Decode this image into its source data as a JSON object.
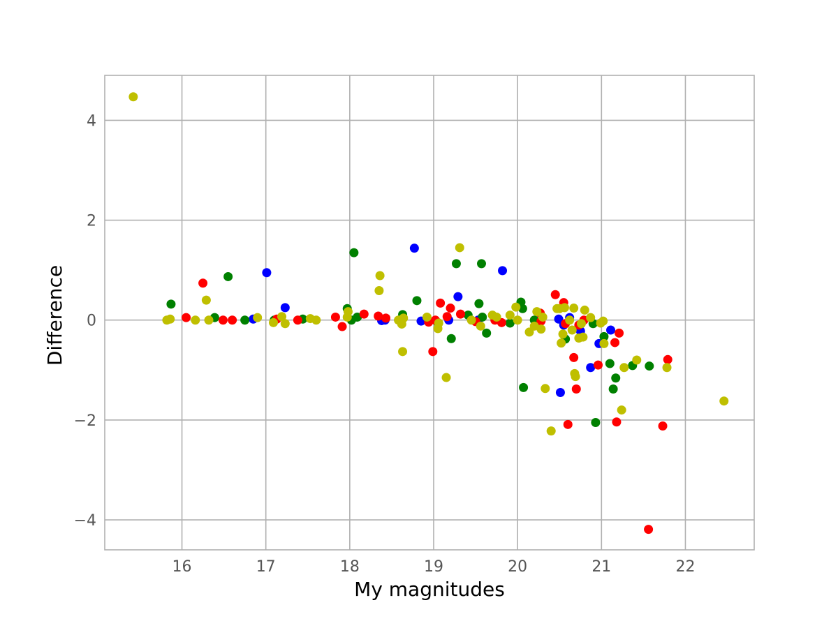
{
  "chart_data": {
    "type": "scatter",
    "title": "",
    "xlabel": "My magnitudes",
    "ylabel": "Difference",
    "xlim": [
      15.08,
      22.82
    ],
    "ylim": [
      -4.6,
      4.9
    ],
    "xticks": [
      16,
      17,
      18,
      19,
      20,
      21,
      22
    ],
    "yticks": [
      -4,
      -2,
      0,
      2,
      4
    ],
    "xtick_labels": [
      "16",
      "17",
      "18",
      "19",
      "20",
      "21",
      "22"
    ],
    "ytick_labels": [
      "−4",
      "−2",
      "0",
      "2",
      "4"
    ],
    "grid": true,
    "legend": "none",
    "series": [
      {
        "color": "#0000ff",
        "points": [
          [
            16.85,
            0.02
          ],
          [
            17.01,
            0.95
          ],
          [
            17.23,
            0.25
          ],
          [
            18.38,
            -0.01
          ],
          [
            18.42,
            0.0
          ],
          [
            18.77,
            1.44
          ],
          [
            18.85,
            -0.02
          ],
          [
            19.18,
            0.0
          ],
          [
            19.29,
            0.47
          ],
          [
            19.53,
            0.0
          ],
          [
            19.82,
            0.99
          ],
          [
            20.49,
            0.02
          ],
          [
            20.51,
            -1.45
          ],
          [
            20.55,
            -0.1
          ],
          [
            20.62,
            0.05
          ],
          [
            20.75,
            -0.22
          ],
          [
            20.87,
            -0.95
          ],
          [
            20.97,
            -0.47
          ],
          [
            21.11,
            -0.2
          ]
        ]
      },
      {
        "color": "#008000",
        "points": [
          [
            15.87,
            0.32
          ],
          [
            16.39,
            0.05
          ],
          [
            16.55,
            0.87
          ],
          [
            16.75,
            0.0
          ],
          [
            17.1,
            0.0
          ],
          [
            17.44,
            0.02
          ],
          [
            17.97,
            0.23
          ],
          [
            18.02,
            0.0
          ],
          [
            18.05,
            1.35
          ],
          [
            18.09,
            0.06
          ],
          [
            18.63,
            0.11
          ],
          [
            18.8,
            0.39
          ],
          [
            19.05,
            -0.05
          ],
          [
            19.21,
            -0.37
          ],
          [
            19.27,
            1.13
          ],
          [
            19.41,
            0.1
          ],
          [
            19.54,
            0.33
          ],
          [
            19.57,
            1.13
          ],
          [
            19.58,
            0.06
          ],
          [
            19.63,
            -0.26
          ],
          [
            19.91,
            -0.06
          ],
          [
            20.04,
            0.36
          ],
          [
            20.06,
            0.23
          ],
          [
            20.07,
            -1.35
          ],
          [
            20.2,
            0.0
          ],
          [
            20.57,
            -0.38
          ],
          [
            20.9,
            -0.07
          ],
          [
            20.93,
            -2.05
          ],
          [
            21.03,
            -0.33
          ],
          [
            21.1,
            -0.87
          ],
          [
            21.14,
            -1.38
          ],
          [
            21.17,
            -1.16
          ],
          [
            21.37,
            -0.91
          ],
          [
            21.57,
            -0.92
          ]
        ]
      },
      {
        "color": "#ff0000",
        "points": [
          [
            16.05,
            0.05
          ],
          [
            16.25,
            0.74
          ],
          [
            16.49,
            0.0
          ],
          [
            16.6,
            0.0
          ],
          [
            17.13,
            0.02
          ],
          [
            17.38,
            0.0
          ],
          [
            17.83,
            0.06
          ],
          [
            17.91,
            -0.13
          ],
          [
            18.17,
            0.12
          ],
          [
            18.34,
            0.08
          ],
          [
            18.43,
            0.04
          ],
          [
            18.94,
            -0.04
          ],
          [
            18.99,
            -0.63
          ],
          [
            19.02,
            0.0
          ],
          [
            19.08,
            0.34
          ],
          [
            19.16,
            0.07
          ],
          [
            19.2,
            0.24
          ],
          [
            19.32,
            0.12
          ],
          [
            19.5,
            -0.03
          ],
          [
            19.73,
            0.0
          ],
          [
            19.81,
            -0.05
          ],
          [
            20.27,
            0.14
          ],
          [
            20.28,
            -0.02
          ],
          [
            20.45,
            0.51
          ],
          [
            20.55,
            0.35
          ],
          [
            20.57,
            -0.07
          ],
          [
            20.6,
            -2.09
          ],
          [
            20.67,
            -0.75
          ],
          [
            20.7,
            -1.38
          ],
          [
            20.73,
            -0.1
          ],
          [
            20.79,
            0.0
          ],
          [
            20.96,
            -0.9
          ],
          [
            21.16,
            -0.45
          ],
          [
            21.18,
            -2.04
          ],
          [
            21.21,
            -0.26
          ],
          [
            21.56,
            -4.19
          ],
          [
            21.73,
            -2.12
          ],
          [
            21.79,
            -0.79
          ]
        ]
      },
      {
        "color": "#bfbf00",
        "points": [
          [
            15.42,
            4.47
          ],
          [
            15.82,
            0.0
          ],
          [
            15.86,
            0.02
          ],
          [
            16.16,
            0.0
          ],
          [
            16.29,
            0.4
          ],
          [
            16.32,
            0.0
          ],
          [
            16.9,
            0.05
          ],
          [
            17.09,
            -0.05
          ],
          [
            17.19,
            0.07
          ],
          [
            17.23,
            -0.07
          ],
          [
            17.53,
            0.03
          ],
          [
            17.6,
            0.0
          ],
          [
            17.97,
            0.06
          ],
          [
            17.98,
            0.17
          ],
          [
            18.35,
            0.59
          ],
          [
            18.36,
            0.89
          ],
          [
            18.58,
            0.0
          ],
          [
            18.62,
            -0.08
          ],
          [
            18.63,
            -0.63
          ],
          [
            18.64,
            0.04
          ],
          [
            18.92,
            0.06
          ],
          [
            19.05,
            -0.17
          ],
          [
            19.06,
            -0.06
          ],
          [
            19.15,
            -1.15
          ],
          [
            19.31,
            1.45
          ],
          [
            19.45,
            0.0
          ],
          [
            19.56,
            -0.12
          ],
          [
            19.7,
            0.1
          ],
          [
            19.75,
            0.06
          ],
          [
            19.91,
            0.1
          ],
          [
            19.98,
            0.26
          ],
          [
            20.0,
            0.0
          ],
          [
            20.14,
            -0.24
          ],
          [
            20.2,
            -0.12
          ],
          [
            20.23,
            0.17
          ],
          [
            20.28,
            -0.18
          ],
          [
            20.3,
            0.06
          ],
          [
            20.33,
            -1.37
          ],
          [
            20.4,
            -2.22
          ],
          [
            20.47,
            0.23
          ],
          [
            20.5,
            0.23
          ],
          [
            20.52,
            -0.46
          ],
          [
            20.54,
            -0.28
          ],
          [
            20.56,
            0.25
          ],
          [
            20.62,
            0.0
          ],
          [
            20.65,
            -0.2
          ],
          [
            20.67,
            0.24
          ],
          [
            20.68,
            -1.07
          ],
          [
            20.69,
            -1.13
          ],
          [
            20.73,
            -0.36
          ],
          [
            20.76,
            -0.07
          ],
          [
            20.78,
            -0.34
          ],
          [
            20.8,
            0.2
          ],
          [
            20.87,
            0.05
          ],
          [
            20.99,
            -0.06
          ],
          [
            21.02,
            -0.02
          ],
          [
            21.03,
            -0.47
          ],
          [
            21.24,
            -1.8
          ],
          [
            21.27,
            -0.95
          ],
          [
            21.42,
            -0.8
          ],
          [
            21.78,
            -0.95
          ],
          [
            22.46,
            -1.62
          ]
        ]
      }
    ]
  }
}
